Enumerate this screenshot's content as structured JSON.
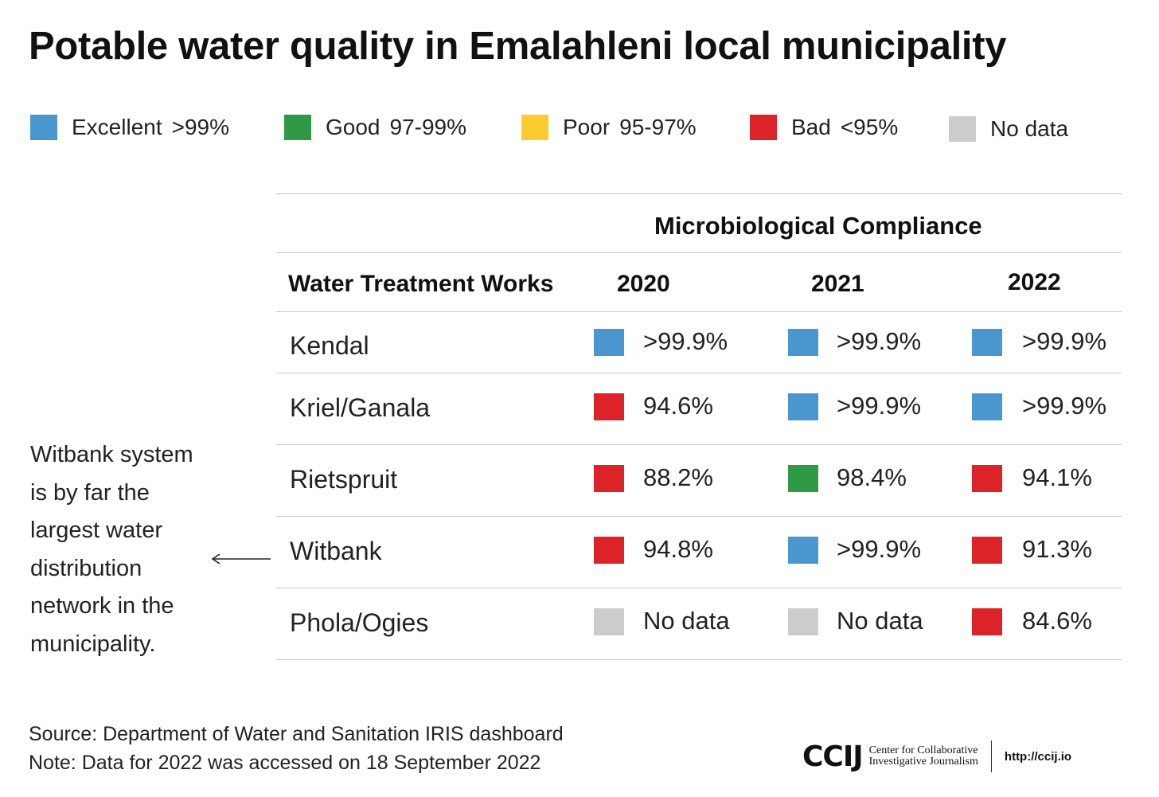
{
  "title": "Potable water quality in Emalahleni local municipality",
  "legend": [
    {
      "label": "Excellent",
      "range": ">99%",
      "color": "#4a97d0",
      "category": "excellent"
    },
    {
      "label": "Good",
      "range": "97-99%",
      "color": "#2e9a46",
      "category": "good"
    },
    {
      "label": "Poor",
      "range": "95-97%",
      "color": "#fdcb30",
      "category": "poor"
    },
    {
      "label": "Bad",
      "range": "<95%",
      "color": "#dc2428",
      "category": "bad"
    },
    {
      "label": "No data",
      "range": "",
      "color": "#cccccc",
      "category": "nodata"
    }
  ],
  "chart_data": {
    "type": "table",
    "title": "Potable water quality in Emalahleni local municipality",
    "group_header": "Microbiological Compliance",
    "row_header": "Water Treatment Works",
    "columns": [
      "2020",
      "2021",
      "2022"
    ],
    "rows": [
      {
        "name": "Kendal",
        "cells": [
          {
            "value": ">99.9%",
            "category": "excellent"
          },
          {
            "value": ">99.9%",
            "category": "excellent"
          },
          {
            "value": ">99.9%",
            "category": "excellent"
          }
        ]
      },
      {
        "name": "Kriel/Ganala",
        "cells": [
          {
            "value": "94.6%",
            "category": "bad"
          },
          {
            "value": ">99.9%",
            "category": "excellent"
          },
          {
            "value": ">99.9%",
            "category": "excellent"
          }
        ]
      },
      {
        "name": "Rietspruit",
        "cells": [
          {
            "value": "88.2%",
            "category": "bad"
          },
          {
            "value": "98.4%",
            "category": "good"
          },
          {
            "value": "94.1%",
            "category": "bad"
          }
        ]
      },
      {
        "name": "Witbank",
        "cells": [
          {
            "value": "94.8%",
            "category": "bad"
          },
          {
            "value": ">99.9%",
            "category": "excellent"
          },
          {
            "value": "91.3%",
            "category": "bad"
          }
        ]
      },
      {
        "name": "Phola/Ogies",
        "cells": [
          {
            "value": "No data",
            "category": "nodata"
          },
          {
            "value": "No data",
            "category": "nodata"
          },
          {
            "value": "84.6%",
            "category": "bad"
          }
        ]
      }
    ]
  },
  "annotation": {
    "lines": [
      "Witbank system",
      "is by far the",
      "largest water",
      "distribution",
      "network in the",
      "municipality."
    ],
    "arrow_icon": "left-arrow-icon"
  },
  "source": {
    "source_line": "Source:  Department of Water and Sanitation IRIS dashboard",
    "note_line": "Note: Data for 2022 was accessed on 18 September 2022"
  },
  "logo": {
    "mark": "CCIJ",
    "name_line1": "Center for Collaborative",
    "name_line2": "Investigative Journalism",
    "url": "http://ccij.io"
  }
}
